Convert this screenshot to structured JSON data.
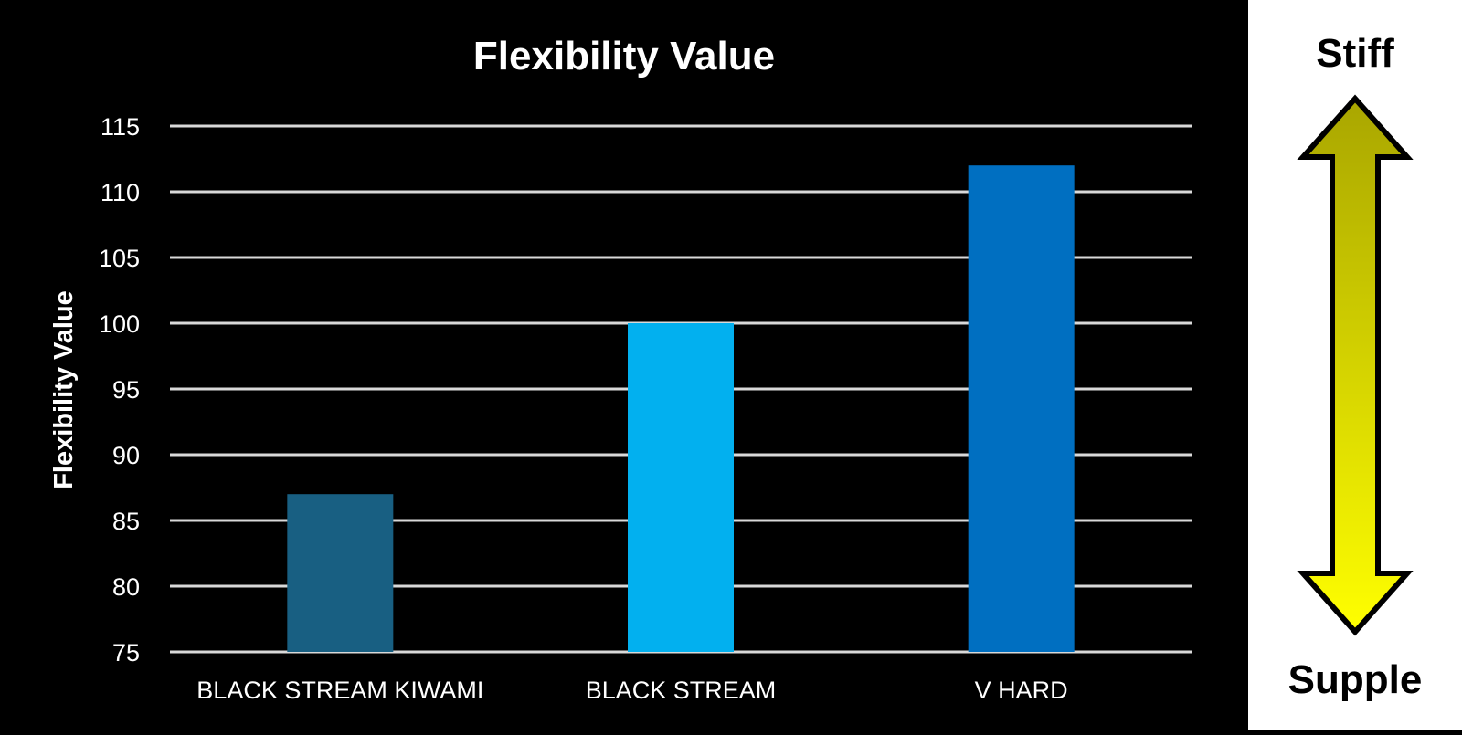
{
  "chart_data": {
    "type": "bar",
    "title": "Flexibility Value",
    "xlabel": "",
    "ylabel": "Flexibility Value",
    "categories": [
      "BLACK STREAM KIWAMI",
      "BLACK STREAM",
      "V HARD"
    ],
    "values": [
      87,
      100,
      112
    ],
    "bar_colors": [
      "#185F82",
      "#02B0EF",
      "#006FC1"
    ],
    "ylim": [
      75,
      115
    ],
    "yticks": [
      75,
      80,
      85,
      90,
      95,
      100,
      105,
      110,
      115
    ],
    "grid": true,
    "background": "#000000"
  },
  "scale_panel": {
    "top_label": "Stiff",
    "bottom_label": "Supple",
    "arrow_colors": {
      "top": "#A9A600",
      "bottom": "#FFFF00"
    }
  }
}
